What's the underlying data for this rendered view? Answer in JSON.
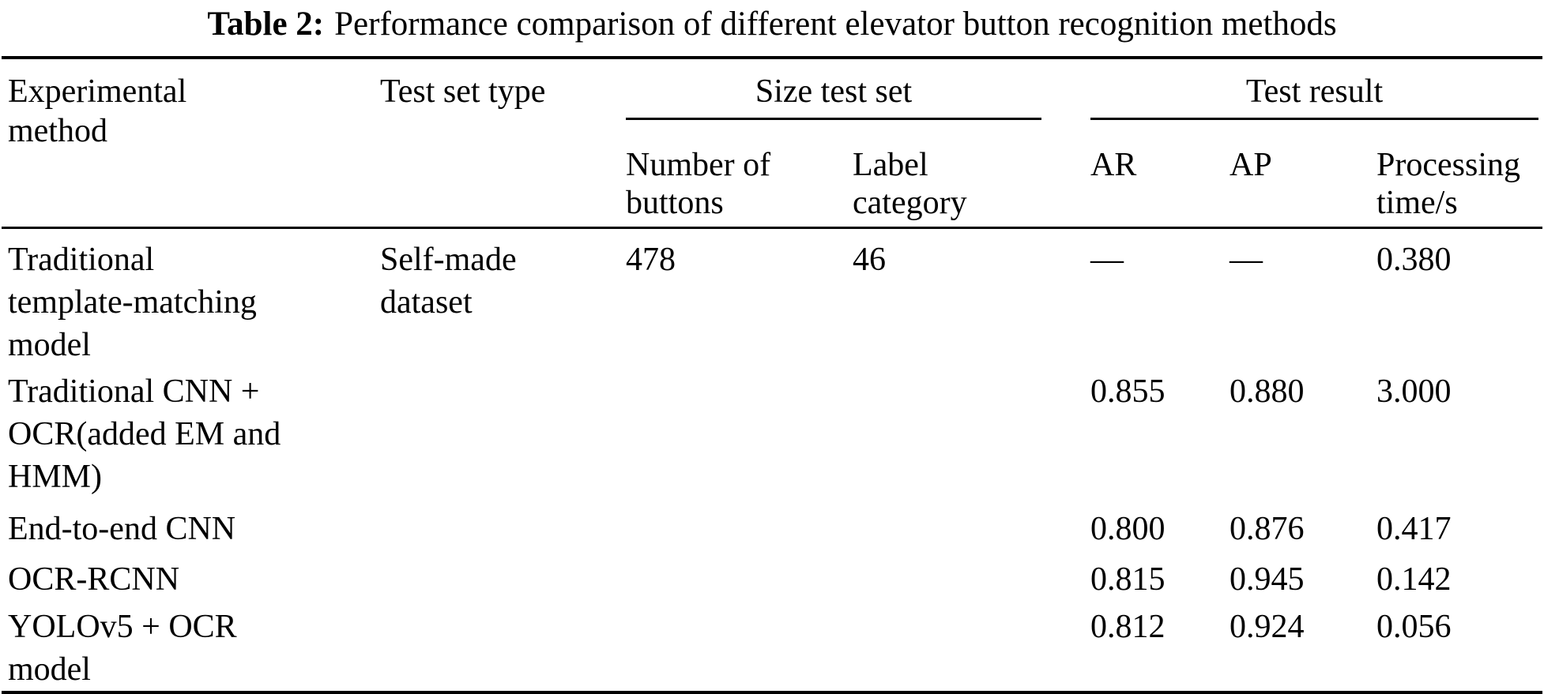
{
  "caption": {
    "label": "Table 2:",
    "text": "Performance comparison of different elevator button recognition methods"
  },
  "table": {
    "headers": {
      "experimental_method": "Experimental\nmethod",
      "test_set_type": "Test set type",
      "size_test_set": "Size test set",
      "test_result": "Test result",
      "number_of_buttons": "Number of\nbuttons",
      "label_category": "Label\ncategory",
      "ar": "AR",
      "ap": "AP",
      "processing_time": "Processing\ntime/s"
    },
    "rows": [
      {
        "method": "Traditional\ntemplate-matching\nmodel",
        "test_set_type": "Self-made\ndataset",
        "number_of_buttons": "478",
        "label_category": "46",
        "ar": "—",
        "ap": "—",
        "processing_time": "0.380"
      },
      {
        "method": "Traditional CNN +\nOCR(added EM and\nHMM)",
        "test_set_type": "",
        "number_of_buttons": "",
        "label_category": "",
        "ar": "0.855",
        "ap": "0.880",
        "processing_time": "3.000"
      },
      {
        "method": "End-to-end CNN",
        "test_set_type": "",
        "number_of_buttons": "",
        "label_category": "",
        "ar": "0.800",
        "ap": "0.876",
        "processing_time": "0.417"
      },
      {
        "method": "OCR-RCNN",
        "test_set_type": "",
        "number_of_buttons": "",
        "label_category": "",
        "ar": "0.815",
        "ap": "0.945",
        "processing_time": "0.142"
      },
      {
        "method": "YOLOv5 + OCR\nmodel",
        "test_set_type": "",
        "number_of_buttons": "",
        "label_category": "",
        "ar": "0.812",
        "ap": "0.924",
        "processing_time": "0.056"
      }
    ]
  }
}
